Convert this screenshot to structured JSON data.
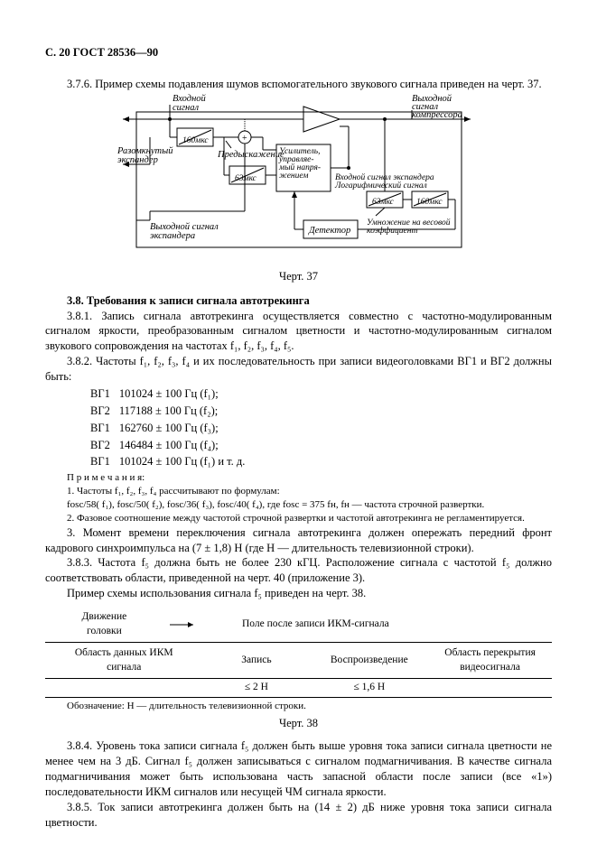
{
  "page_head": "С. 20 ГОСТ 28536—90",
  "p376": "3.7.6. Пример схемы подавления шумов вспомогательного звукового сигнала приведен на черт. 37.",
  "diag37": {
    "in_signal": "Входной\nсигнал",
    "t160_1": "160мкс",
    "open_expander": "Разомкнутый\nэкспандер",
    "pre_emph": "Предыскажение",
    "t63": "63мкс",
    "amp_ctrl": "Усилитель,\nуправляе-\nмый напря-\nжением",
    "out_signal": "Выходной\nсигнал\nкомпрессора",
    "out_exp": "Выходной сигнал\nэкспандера",
    "in_exp_log": "Входной сигнал экспандера\nЛогарифмический сигнал",
    "t63_2": "63мкс",
    "t160_2": "160мкс",
    "detector": "Детектор",
    "mult_wc": "Умножение на весовой\nкоэффициент",
    "caption": "Черт. 37"
  },
  "s38_title": "3.8.  Требования к записи сигнала автотрекинга",
  "p381": "3.8.1. Запись сигнала автотрекинга осуществляется совместно с частотно-модулированным сигналом яркости, преобразованным сигналом цветности и частотно-модулированным сигналом звукового сопровождения на частотах f₁, f₂, f₃, f₄, f₅.",
  "p382": "3.8.2. Частоты f₁, f₂, f₃, f₄ и их последовательность при записи видеоголовками ВГ1 и ВГ2 должны быть:",
  "freq": [
    {
      "h": "ВГ1",
      "v": "101024 ± 100 Гц (f₁);"
    },
    {
      "h": "ВГ2",
      "v": "117188 ± 100 Гц (f₂);"
    },
    {
      "h": "ВГ1",
      "v": "162760 ± 100 Гц (f₃);"
    },
    {
      "h": "ВГ2",
      "v": "146484 ± 100 Гц (f₄);"
    },
    {
      "h": "ВГ1",
      "v": "101024 ± 100 Гц (f₁) и т. д."
    }
  ],
  "notes": {
    "head": "П р и м е ч а н и я:",
    "n1": "1. Частоты f₁, f₂, f₃, f₄ рассчитывают по формулам:",
    "n1b": "fosc/58( f₁), fosc/50( f₂), fosc/36( f₃), fosc/40( f₄), где fosc = 375 fн, fн — частота строчной развертки.",
    "n2": "2. Фазовое соотношение между частотой строчной развертки и частотой автотрекинга не регламентируется.",
    "n3": "3. Момент времени переключения сигнала автотрекинга должен опережать передний фронт кадрового синхроимпульса на (7 ± 1,8) Н (где Н — длительность телевизионной строки)."
  },
  "p383": "3.8.3. Частота f₅ должна быть не более 230 кГЦ. Расположение сигнала с частотой f₅ должно соответствовать области, приведенной на черт. 40 (приложение 3).",
  "p383b": "Пример схемы использования сигнала f₅ приведен на черт. 38.",
  "tbl38": {
    "h_left": "Движение\nголовки",
    "h_right": "Поле после записи ИКМ-сигнала",
    "c1": "Область данных ИКМ\nсигнала",
    "c2": "Запись",
    "c3": "Воспроизведение",
    "c4": "Область перекрытия\nвидеосигнала",
    "v2": "≤ 2 Н",
    "v3": "≤ 1,6 Н",
    "note": "Обозначение: Н — длительность телевизионной строки.",
    "caption": "Черт. 38"
  },
  "p384": "3.8.4. Уровень тока записи сигнала f₅ должен быть выше уровня тока записи сигнала цветности не менее чем на 3 дБ. Сигнал f₅ должен записываться с сигналом подмагничивания. В качестве сигнала подмагничивания может быть использована часть запасной области после записи (все «1») последовательности ИКМ сигналов или несущей ЧМ сигнала яркости.",
  "p385": "3.8.5. Ток записи автотрекинга должен быть на (14 ± 2) дБ ниже уровня тока записи сигнала цветности."
}
